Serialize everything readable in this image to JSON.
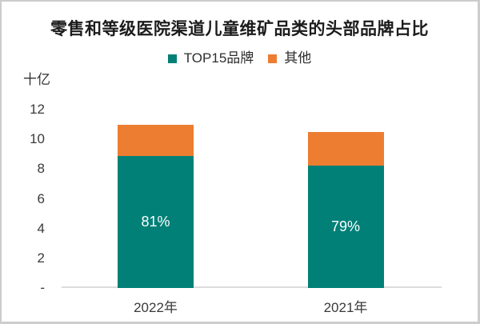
{
  "window": {
    "background": "#ffffff",
    "border_color": "#cdcdcd"
  },
  "chart_data": {
    "type": "bar",
    "stacked": true,
    "title": "零售和等级医院渠道儿童维矿品类的头部品牌占比",
    "unit_label": "十亿",
    "categories": [
      "2022年",
      "2021年"
    ],
    "series": [
      {
        "name": "TOP15品牌",
        "color": "#008077",
        "values": [
          8.9,
          8.25
        ],
        "data_labels": [
          "81%",
          "79%"
        ]
      },
      {
        "name": "其他",
        "color": "#ED7D31",
        "values": [
          2.1,
          2.25
        ],
        "data_labels": [
          "",
          ""
        ]
      }
    ],
    "totals": [
      11.0,
      10.5
    ],
    "xlabel": "",
    "ylabel": "十亿",
    "ylim": [
      0,
      12
    ],
    "yticks": {
      "values": [
        12,
        10,
        8,
        6,
        4,
        2,
        0
      ],
      "labels": [
        "12",
        "10",
        "8",
        "6",
        "4",
        "2",
        "-"
      ]
    },
    "grid": false,
    "legend_position": "top-center",
    "colors": {
      "axis_line": "#dcdcdc",
      "text": "#3a3a3a",
      "title_text": "#1c1c1c",
      "bar_label_text": "#ffffff"
    }
  }
}
